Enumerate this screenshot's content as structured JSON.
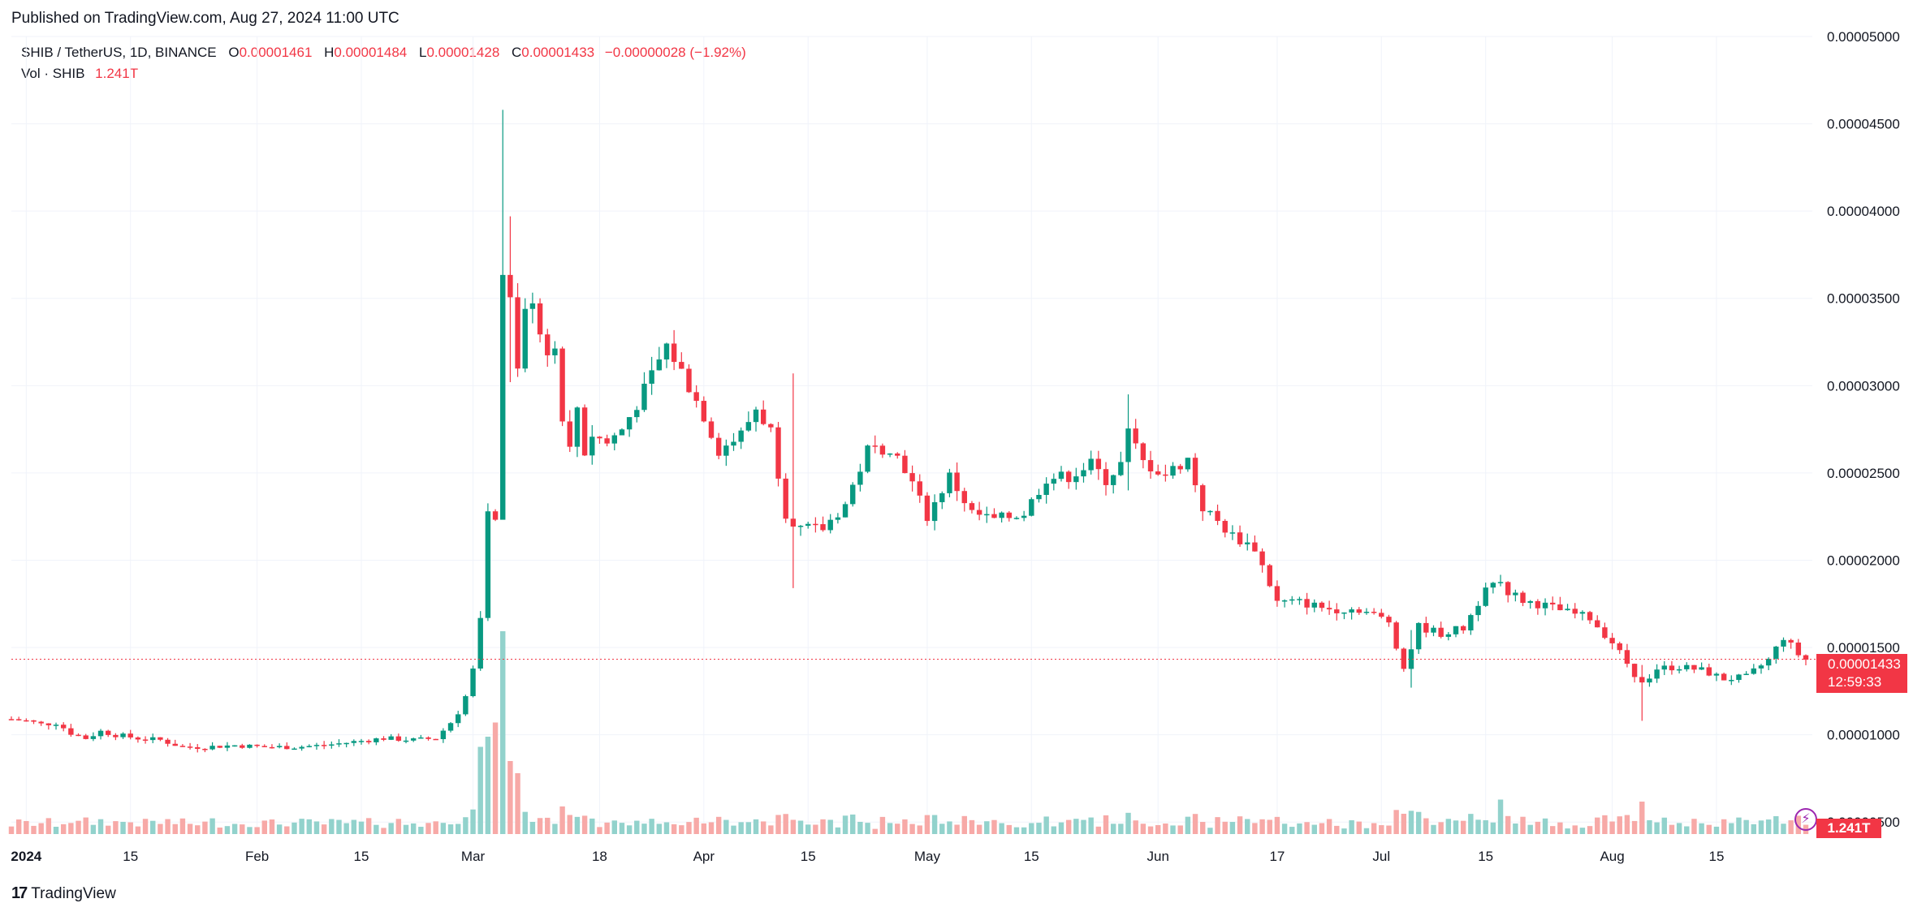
{
  "header": {
    "published": "Published on TradingView.com, Aug 27, 2024 11:00 UTC"
  },
  "legend": {
    "symbol": "SHIB / TetherUS, 1D, BINANCE",
    "o_label": "O",
    "o_value": "0.00001461",
    "h_label": "H",
    "h_value": "0.00001484",
    "l_label": "L",
    "l_value": "0.00001428",
    "c_label": "C",
    "c_value": "0.00001433",
    "change": "−0.00000028 (−1.92%)",
    "vol_label": "Vol · SHIB",
    "vol_value": "1.241T"
  },
  "price_badge": {
    "price": "0.00001433",
    "countdown": "12:59:33"
  },
  "volume_badge": "1.241T",
  "footer": {
    "brand": "TradingView",
    "logo_text": "17"
  },
  "colors": {
    "up": "#089981",
    "down": "#f23645",
    "up_vol": "#92d2cc",
    "down_vol": "#f7a9a7",
    "grid": "#f0f3fa"
  },
  "chart_data": {
    "type": "candlestick",
    "title": "SHIB / TetherUS, 1D, BINANCE",
    "y_ticks": [
      "0.00000500",
      "0.00001000",
      "0.00001500",
      "0.00002000",
      "0.00002500",
      "0.00003000",
      "0.00003500",
      "0.00004000",
      "0.00004500",
      "0.00005000"
    ],
    "y_tick_values": [
      5e-06,
      1e-05,
      1.5e-05,
      2e-05,
      2.5e-05,
      3e-05,
      3.5e-05,
      4e-05,
      4.5e-05,
      5e-05
    ],
    "ylim": [
      4.5e-06,
      5e-05
    ],
    "x_ticks": [
      {
        "label": "2024",
        "date": "2024-01-01",
        "bold": true
      },
      {
        "label": "15",
        "date": "2024-01-15"
      },
      {
        "label": "Feb",
        "date": "2024-02-01"
      },
      {
        "label": "15",
        "date": "2024-02-15"
      },
      {
        "label": "Mar",
        "date": "2024-03-01"
      },
      {
        "label": "18",
        "date": "2024-03-18"
      },
      {
        "label": "Apr",
        "date": "2024-04-01"
      },
      {
        "label": "15",
        "date": "2024-04-15"
      },
      {
        "label": "May",
        "date": "2024-05-01"
      },
      {
        "label": "15",
        "date": "2024-05-15"
      },
      {
        "label": "Jun",
        "date": "2024-06-01"
      },
      {
        "label": "17",
        "date": "2024-06-17"
      },
      {
        "label": "Jul",
        "date": "2024-07-01"
      },
      {
        "label": "15",
        "date": "2024-07-15"
      },
      {
        "label": "Aug",
        "date": "2024-08-01"
      },
      {
        "label": "15",
        "date": "2024-08-15"
      }
    ],
    "x_start": "2023-12-30",
    "x_end": "2024-08-27",
    "last_close": 1.433e-05,
    "close_series": [
      [
        "2023-12-30",
        1.09e-05
      ],
      [
        "2024-01-01",
        1.08e-05
      ],
      [
        "2024-01-03",
        1.06e-05
      ],
      [
        "2024-01-05",
        1.07e-05
      ],
      [
        "2024-01-07",
        1.01e-05
      ],
      [
        "2024-01-09",
        9.8e-06
      ],
      [
        "2024-01-11",
        1.02e-05
      ],
      [
        "2024-01-13",
        1e-05
      ],
      [
        "2024-01-16",
        9.8e-06
      ],
      [
        "2024-01-19",
        9.7e-06
      ],
      [
        "2024-01-22",
        9.3e-06
      ],
      [
        "2024-01-25",
        9.3e-06
      ],
      [
        "2024-01-29",
        9.4e-06
      ],
      [
        "2024-02-02",
        9.3e-06
      ],
      [
        "2024-02-06",
        9.3e-06
      ],
      [
        "2024-02-10",
        9.4e-06
      ],
      [
        "2024-02-14",
        9.6e-06
      ],
      [
        "2024-02-18",
        9.8e-06
      ],
      [
        "2024-02-22",
        9.7e-06
      ],
      [
        "2024-02-25",
        9.8e-06
      ],
      [
        "2024-02-27",
        1.07e-05
      ],
      [
        "2024-02-28",
        1.13e-05
      ],
      [
        "2024-02-29",
        1.22e-05
      ],
      [
        "2024-03-01",
        1.37e-05
      ],
      [
        "2024-03-02",
        1.65e-05
      ],
      [
        "2024-03-03",
        2.25e-05
      ],
      [
        "2024-03-04",
        2.26e-05
      ],
      [
        "2024-03-05",
        3.61e-05
      ],
      [
        "2024-03-06",
        3.53e-05
      ],
      [
        "2024-03-07",
        3.13e-05
      ],
      [
        "2024-03-08",
        3.41e-05
      ],
      [
        "2024-03-09",
        3.51e-05
      ],
      [
        "2024-03-10",
        3.31e-05
      ],
      [
        "2024-03-11",
        3.21e-05
      ],
      [
        "2024-03-12",
        3.21e-05
      ],
      [
        "2024-03-13",
        2.83e-05
      ],
      [
        "2024-03-14",
        2.63e-05
      ],
      [
        "2024-03-15",
        2.88e-05
      ],
      [
        "2024-03-16",
        2.62e-05
      ],
      [
        "2024-03-17",
        2.72e-05
      ],
      [
        "2024-03-19",
        2.67e-05
      ],
      [
        "2024-03-21",
        2.75e-05
      ],
      [
        "2024-03-24",
        2.97e-05
      ],
      [
        "2024-03-27",
        3.23e-05
      ],
      [
        "2024-03-29",
        3.08e-05
      ],
      [
        "2024-04-01",
        2.83e-05
      ],
      [
        "2024-04-03",
        2.63e-05
      ],
      [
        "2024-04-06",
        2.72e-05
      ],
      [
        "2024-04-08",
        2.87e-05
      ],
      [
        "2024-04-10",
        2.74e-05
      ],
      [
        "2024-04-12",
        2.27e-05
      ],
      [
        "2024-04-14",
        2.18e-05
      ],
      [
        "2024-04-17",
        2.18e-05
      ],
      [
        "2024-04-20",
        2.32e-05
      ],
      [
        "2024-04-23",
        2.63e-05
      ],
      [
        "2024-04-26",
        2.65e-05
      ],
      [
        "2024-04-28",
        2.53e-05
      ],
      [
        "2024-05-01",
        2.25e-05
      ],
      [
        "2024-05-04",
        2.48e-05
      ],
      [
        "2024-05-07",
        2.27e-05
      ],
      [
        "2024-05-10",
        2.23e-05
      ],
      [
        "2024-05-14",
        2.27e-05
      ],
      [
        "2024-05-17",
        2.47e-05
      ],
      [
        "2024-05-20",
        2.48e-05
      ],
      [
        "2024-05-23",
        2.55e-05
      ],
      [
        "2024-05-25",
        2.46e-05
      ],
      [
        "2024-05-27",
        2.55e-05
      ],
      [
        "2024-05-28",
        2.73e-05
      ],
      [
        "2024-05-30",
        2.56e-05
      ],
      [
        "2024-06-02",
        2.49e-05
      ],
      [
        "2024-06-05",
        2.58e-05
      ],
      [
        "2024-06-07",
        2.3e-05
      ],
      [
        "2024-06-11",
        2.14e-05
      ],
      [
        "2024-06-14",
        2.07e-05
      ],
      [
        "2024-06-17",
        1.76e-05
      ],
      [
        "2024-06-20",
        1.76e-05
      ],
      [
        "2024-06-24",
        1.72e-05
      ],
      [
        "2024-06-28",
        1.72e-05
      ],
      [
        "2024-07-02",
        1.65e-05
      ],
      [
        "2024-07-04",
        1.38e-05
      ],
      [
        "2024-07-06",
        1.62e-05
      ],
      [
        "2024-07-09",
        1.58e-05
      ],
      [
        "2024-07-12",
        1.61e-05
      ],
      [
        "2024-07-14",
        1.76e-05
      ],
      [
        "2024-07-15",
        1.87e-05
      ],
      [
        "2024-07-17",
        1.85e-05
      ],
      [
        "2024-07-20",
        1.77e-05
      ],
      [
        "2024-07-23",
        1.74e-05
      ],
      [
        "2024-07-26",
        1.7e-05
      ],
      [
        "2024-07-29",
        1.67e-05
      ],
      [
        "2024-08-01",
        1.53e-05
      ],
      [
        "2024-08-04",
        1.35e-05
      ],
      [
        "2024-08-05",
        1.29e-05
      ],
      [
        "2024-08-07",
        1.38e-05
      ],
      [
        "2024-08-10",
        1.39e-05
      ],
      [
        "2024-08-13",
        1.37e-05
      ],
      [
        "2024-08-16",
        1.32e-05
      ],
      [
        "2024-08-19",
        1.33e-05
      ],
      [
        "2024-08-22",
        1.43e-05
      ],
      [
        "2024-08-24",
        1.56e-05
      ],
      [
        "2024-08-25",
        1.51e-05
      ],
      [
        "2024-08-26",
        1.46e-05
      ],
      [
        "2024-08-27",
        1.43e-05
      ]
    ],
    "spikes": [
      {
        "date": "2024-03-05",
        "high": 4.58e-05,
        "low": 2.26e-05
      },
      {
        "date": "2024-03-06",
        "high": 3.97e-05,
        "low": 3.02e-05
      },
      {
        "date": "2024-04-13",
        "high": 3.07e-05,
        "low": 1.84e-05
      },
      {
        "date": "2024-05-28",
        "high": 2.95e-05,
        "low": 2.4e-05
      },
      {
        "date": "2024-07-05",
        "high": 1.6e-05,
        "low": 1.27e-05
      },
      {
        "date": "2024-08-05",
        "high": 1.4e-05,
        "low": 1.08e-05
      }
    ],
    "volume_peaks": [
      {
        "date": "2024-03-05",
        "rel": 1.0
      },
      {
        "date": "2024-03-04",
        "rel": 0.55
      },
      {
        "date": "2024-03-03",
        "rel": 0.48
      },
      {
        "date": "2024-03-02",
        "rel": 0.43
      },
      {
        "date": "2024-03-06",
        "rel": 0.36
      },
      {
        "date": "2024-03-07",
        "rel": 0.3
      },
      {
        "date": "2024-07-17",
        "rel": 0.17
      },
      {
        "date": "2024-08-05",
        "rel": 0.16
      }
    ]
  }
}
